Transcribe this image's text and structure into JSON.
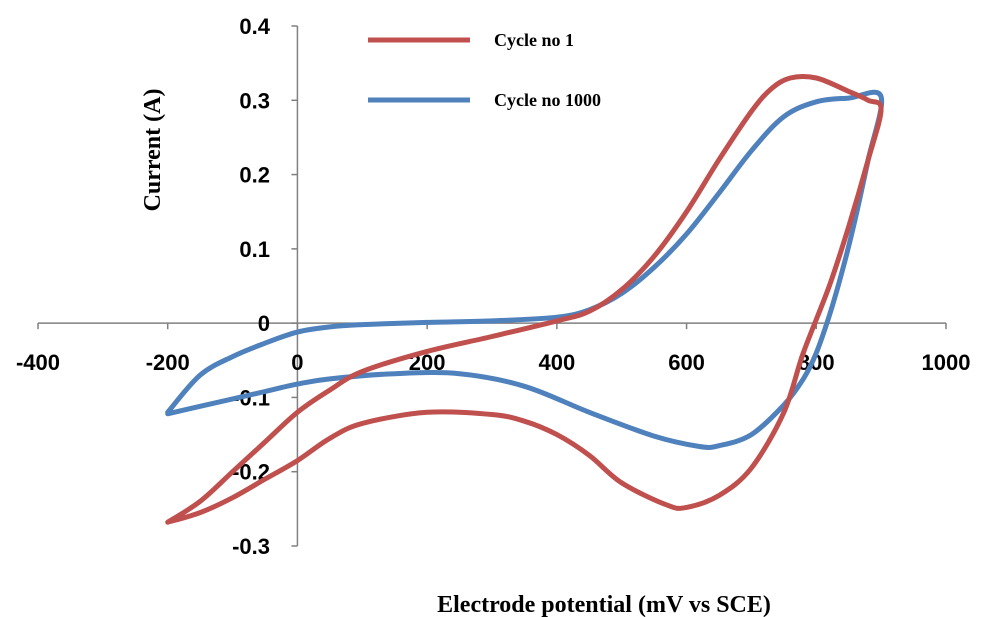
{
  "chart_data": {
    "type": "line",
    "title": "",
    "xlabel": "Electrode potential (mV vs SCE)",
    "ylabel": "Current (A)",
    "xlim": [
      -400,
      1000
    ],
    "ylim": [
      -0.3,
      0.4
    ],
    "x_ticks": [
      "-400",
      "-200",
      "0",
      "200",
      "400",
      "600",
      "800",
      "1000"
    ],
    "y_ticks": [
      "-0.3",
      "-0.2",
      "-0.1",
      "0",
      "0.1",
      "0.2",
      "0.3",
      "0.4"
    ],
    "legend_position": "top-center",
    "series": [
      {
        "name": "Cycle no 1",
        "color": "#C0504D",
        "points": [
          [
            -200,
            -0.268
          ],
          [
            -150,
            -0.24
          ],
          [
            -100,
            -0.2
          ],
          [
            -50,
            -0.16
          ],
          [
            0,
            -0.12
          ],
          [
            50,
            -0.09
          ],
          [
            100,
            -0.065
          ],
          [
            200,
            -0.038
          ],
          [
            300,
            -0.018
          ],
          [
            400,
            0.003
          ],
          [
            450,
            0.016
          ],
          [
            500,
            0.045
          ],
          [
            550,
            0.09
          ],
          [
            600,
            0.15
          ],
          [
            650,
            0.22
          ],
          [
            700,
            0.285
          ],
          [
            730,
            0.315
          ],
          [
            760,
            0.33
          ],
          [
            800,
            0.33
          ],
          [
            850,
            0.312
          ],
          [
            880,
            0.3
          ],
          [
            900,
            0.288
          ],
          [
            880,
            0.22
          ],
          [
            850,
            0.13
          ],
          [
            820,
            0.05
          ],
          [
            780,
            -0.04
          ],
          [
            750,
            -0.12
          ],
          [
            700,
            -0.195
          ],
          [
            650,
            -0.232
          ],
          [
            600,
            -0.248
          ],
          [
            570,
            -0.245
          ],
          [
            500,
            -0.215
          ],
          [
            450,
            -0.178
          ],
          [
            400,
            -0.15
          ],
          [
            350,
            -0.132
          ],
          [
            300,
            -0.123
          ],
          [
            200,
            -0.12
          ],
          [
            100,
            -0.135
          ],
          [
            50,
            -0.155
          ],
          [
            0,
            -0.185
          ],
          [
            -50,
            -0.21
          ],
          [
            -100,
            -0.235
          ],
          [
            -150,
            -0.255
          ],
          [
            -200,
            -0.268
          ]
        ]
      },
      {
        "name": "Cycle no 1000",
        "color": "#4F81BD",
        "points": [
          [
            -200,
            -0.12
          ],
          [
            -150,
            -0.07
          ],
          [
            -100,
            -0.045
          ],
          [
            -50,
            -0.027
          ],
          [
            0,
            -0.012
          ],
          [
            50,
            -0.005
          ],
          [
            100,
            -0.002
          ],
          [
            200,
            0.001
          ],
          [
            300,
            0.003
          ],
          [
            400,
            0.008
          ],
          [
            450,
            0.018
          ],
          [
            500,
            0.04
          ],
          [
            550,
            0.075
          ],
          [
            600,
            0.12
          ],
          [
            650,
            0.175
          ],
          [
            700,
            0.232
          ],
          [
            750,
            0.278
          ],
          [
            800,
            0.298
          ],
          [
            850,
            0.303
          ],
          [
            900,
            0.305
          ],
          [
            880,
            0.22
          ],
          [
            860,
            0.14
          ],
          [
            840,
            0.07
          ],
          [
            820,
            0.01
          ],
          [
            800,
            -0.04
          ],
          [
            780,
            -0.075
          ],
          [
            750,
            -0.11
          ],
          [
            700,
            -0.15
          ],
          [
            650,
            -0.165
          ],
          [
            620,
            -0.166
          ],
          [
            550,
            -0.152
          ],
          [
            450,
            -0.12
          ],
          [
            350,
            -0.085
          ],
          [
            250,
            -0.068
          ],
          [
            150,
            -0.068
          ],
          [
            50,
            -0.075
          ],
          [
            0,
            -0.082
          ],
          [
            -50,
            -0.092
          ],
          [
            -100,
            -0.102
          ],
          [
            -150,
            -0.112
          ],
          [
            -200,
            -0.122
          ]
        ]
      }
    ]
  }
}
